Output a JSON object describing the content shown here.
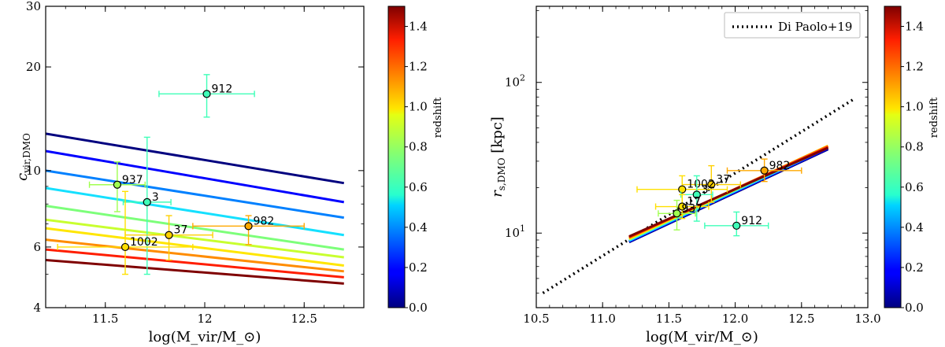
{
  "chart_data": [
    {
      "type": "line",
      "ylabel": "c_vir,DMO",
      "xlabel": "log(M_vir/M_⊙)",
      "xlim": [
        11.2,
        12.8
      ],
      "ylim": [
        4,
        30
      ],
      "yscale": "log",
      "xticks": [
        11.5,
        12,
        12.5
      ],
      "xtick_labels": [
        "11.5",
        "12",
        "12.5"
      ],
      "yticks": [
        4,
        6,
        10,
        20,
        30
      ],
      "ytick_labels": [
        "4",
        "6",
        "10",
        "20",
        "30"
      ],
      "colorbar": {
        "label": "redshift",
        "range": [
          0,
          1.5
        ],
        "ticks": [
          "0.0",
          "0.2",
          "0.4",
          "0.6",
          "0.8",
          "1.0",
          "1.2",
          "1.4"
        ]
      },
      "series": [
        {
          "name": "z=0.0",
          "color": "#00007f",
          "x": [
            11.2,
            12.7
          ],
          "y": [
            12.8,
            9.2
          ]
        },
        {
          "name": "z=0.15",
          "color": "#0000ff",
          "x": [
            11.2,
            12.7
          ],
          "y": [
            11.4,
            8.1
          ]
        },
        {
          "name": "z=0.3",
          "color": "#0080ff",
          "x": [
            11.2,
            12.7
          ],
          "y": [
            10.0,
            7.3
          ]
        },
        {
          "name": "z=0.45",
          "color": "#15e0ff",
          "x": [
            11.2,
            12.7
          ],
          "y": [
            8.9,
            6.5
          ]
        },
        {
          "name": "z=0.6",
          "color": "#7dff7a",
          "x": [
            11.2,
            12.7
          ],
          "y": [
            7.9,
            5.9
          ]
        },
        {
          "name": "z=0.75",
          "color": "#c8ff2f",
          "x": [
            11.2,
            12.7
          ],
          "y": [
            7.2,
            5.6
          ]
        },
        {
          "name": "z=0.9",
          "color": "#ffe600",
          "x": [
            11.2,
            12.7
          ],
          "y": [
            6.8,
            5.3
          ]
        },
        {
          "name": "z=1.05",
          "color": "#ff8c00",
          "x": [
            11.2,
            12.7
          ],
          "y": [
            6.3,
            5.1
          ]
        },
        {
          "name": "z=1.2",
          "color": "#ff1e00",
          "x": [
            11.2,
            12.7
          ],
          "y": [
            5.9,
            4.9
          ]
        },
        {
          "name": "z=1.4",
          "color": "#7f0000",
          "x": [
            11.2,
            12.7
          ],
          "y": [
            5.5,
            4.7
          ]
        }
      ],
      "points": [
        {
          "label": "912",
          "x": 12.01,
          "y": 16.7,
          "xerr": 0.24,
          "ylo": 14.3,
          "yhi": 19.0,
          "color": "#3fffb8"
        },
        {
          "label": "937",
          "x": 11.56,
          "y": 9.1,
          "xerr": 0.14,
          "ylo": 7.6,
          "yhi": 10.6,
          "color": "#a0ff50"
        },
        {
          "label": "3",
          "x": 11.71,
          "y": 8.1,
          "xerr": 0.12,
          "ylo": 5.0,
          "yhi": 12.5,
          "color": "#3fffb8"
        },
        {
          "label": "982",
          "x": 12.22,
          "y": 6.9,
          "xerr": 0.28,
          "ylo": 6.1,
          "yhi": 7.4,
          "color": "#ffa800"
        },
        {
          "label": "37",
          "x": 11.82,
          "y": 6.5,
          "xerr": 0.22,
          "ylo": 5.5,
          "yhi": 7.4,
          "color": "#ffd000"
        },
        {
          "label": "1002",
          "x": 11.6,
          "y": 6.0,
          "xerr": 0.34,
          "ylo": 5.0,
          "yhi": 8.7,
          "color": "#ffe000"
        }
      ]
    },
    {
      "type": "line",
      "ylabel": "r_s,DMO [kpc]",
      "xlabel": "log(M_vir/M_⊙)",
      "xlim": [
        10.5,
        13.0
      ],
      "ylim": [
        3.2,
        320
      ],
      "yscale": "log",
      "xticks": [
        10.5,
        11,
        11.5,
        12,
        12.5,
        13
      ],
      "xtick_labels": [
        "10.5",
        "11.0",
        "11.5",
        "12.0",
        "12.5",
        "13.0"
      ],
      "yticks": [
        10,
        100
      ],
      "ytick_labels": [
        "10^1",
        "10^2"
      ],
      "legend": {
        "position": "top-right",
        "entries": [
          "Di Paolo+19"
        ]
      },
      "colorbar": {
        "label": "redshift",
        "range": [
          0,
          1.5
        ],
        "ticks": [
          "0.0",
          "0.2",
          "0.4",
          "0.6",
          "0.8",
          "1.0",
          "1.2",
          "1.4"
        ]
      },
      "series": [
        {
          "name": "Di Paolo+19",
          "style": "dotted",
          "color": "#000000",
          "x": [
            10.55,
            12.9
          ],
          "y": [
            4.0,
            78
          ]
        },
        {
          "name": "z=0.0",
          "color": "#00007f",
          "x": [
            11.2,
            12.7
          ],
          "y": [
            8.7,
            36.0
          ]
        },
        {
          "name": "z=0.15",
          "color": "#0000ff",
          "x": [
            11.2,
            12.7
          ],
          "y": [
            8.8,
            36.4
          ]
        },
        {
          "name": "z=0.45",
          "color": "#15e0ff",
          "x": [
            11.2,
            12.7
          ],
          "y": [
            8.9,
            36.9
          ]
        },
        {
          "name": "z=0.75",
          "color": "#c8ff2f",
          "x": [
            11.2,
            12.7
          ],
          "y": [
            9.1,
            37.5
          ]
        },
        {
          "name": "z=0.9",
          "color": "#ffe600",
          "x": [
            11.2,
            12.7
          ],
          "y": [
            9.2,
            38.0
          ]
        },
        {
          "name": "z=1.05",
          "color": "#ff8c00",
          "x": [
            11.2,
            12.7
          ],
          "y": [
            9.3,
            37.8
          ]
        },
        {
          "name": "z=1.2",
          "color": "#ff1e00",
          "x": [
            11.2,
            12.7
          ],
          "y": [
            9.4,
            37.3
          ]
        },
        {
          "name": "z=1.4",
          "color": "#7f0000",
          "x": [
            11.2,
            12.7
          ],
          "y": [
            9.5,
            36.8
          ]
        }
      ],
      "points": [
        {
          "label": "982",
          "x": 12.22,
          "y": 26.0,
          "xerr": 0.28,
          "ylo": 22.0,
          "yhi": 31.0,
          "color": "#ffa800"
        },
        {
          "label": "37",
          "x": 11.82,
          "y": 21.0,
          "xerr": 0.22,
          "ylo": 16.0,
          "yhi": 28.0,
          "color": "#ffd000"
        },
        {
          "label": "1002",
          "x": 11.6,
          "y": 19.5,
          "xerr": 0.34,
          "ylo": 15.5,
          "yhi": 24.0,
          "color": "#ffe000"
        },
        {
          "label": "3",
          "x": 11.71,
          "y": 18.0,
          "xerr": 0.12,
          "ylo": 12.0,
          "yhi": 24.0,
          "color": "#3fffb8"
        },
        {
          "label": "17",
          "x": 11.6,
          "y": 15.0,
          "xerr": 0.2,
          "ylo": 12.5,
          "yhi": 18.0,
          "color": "#ffe000"
        },
        {
          "label": "937",
          "x": 11.56,
          "y": 13.5,
          "xerr": 0.14,
          "ylo": 10.5,
          "yhi": 16.5,
          "color": "#a0ff50"
        },
        {
          "label": "912",
          "x": 12.01,
          "y": 11.2,
          "xerr": 0.24,
          "ylo": 9.6,
          "yhi": 13.8,
          "color": "#3fffb8"
        }
      ]
    }
  ]
}
